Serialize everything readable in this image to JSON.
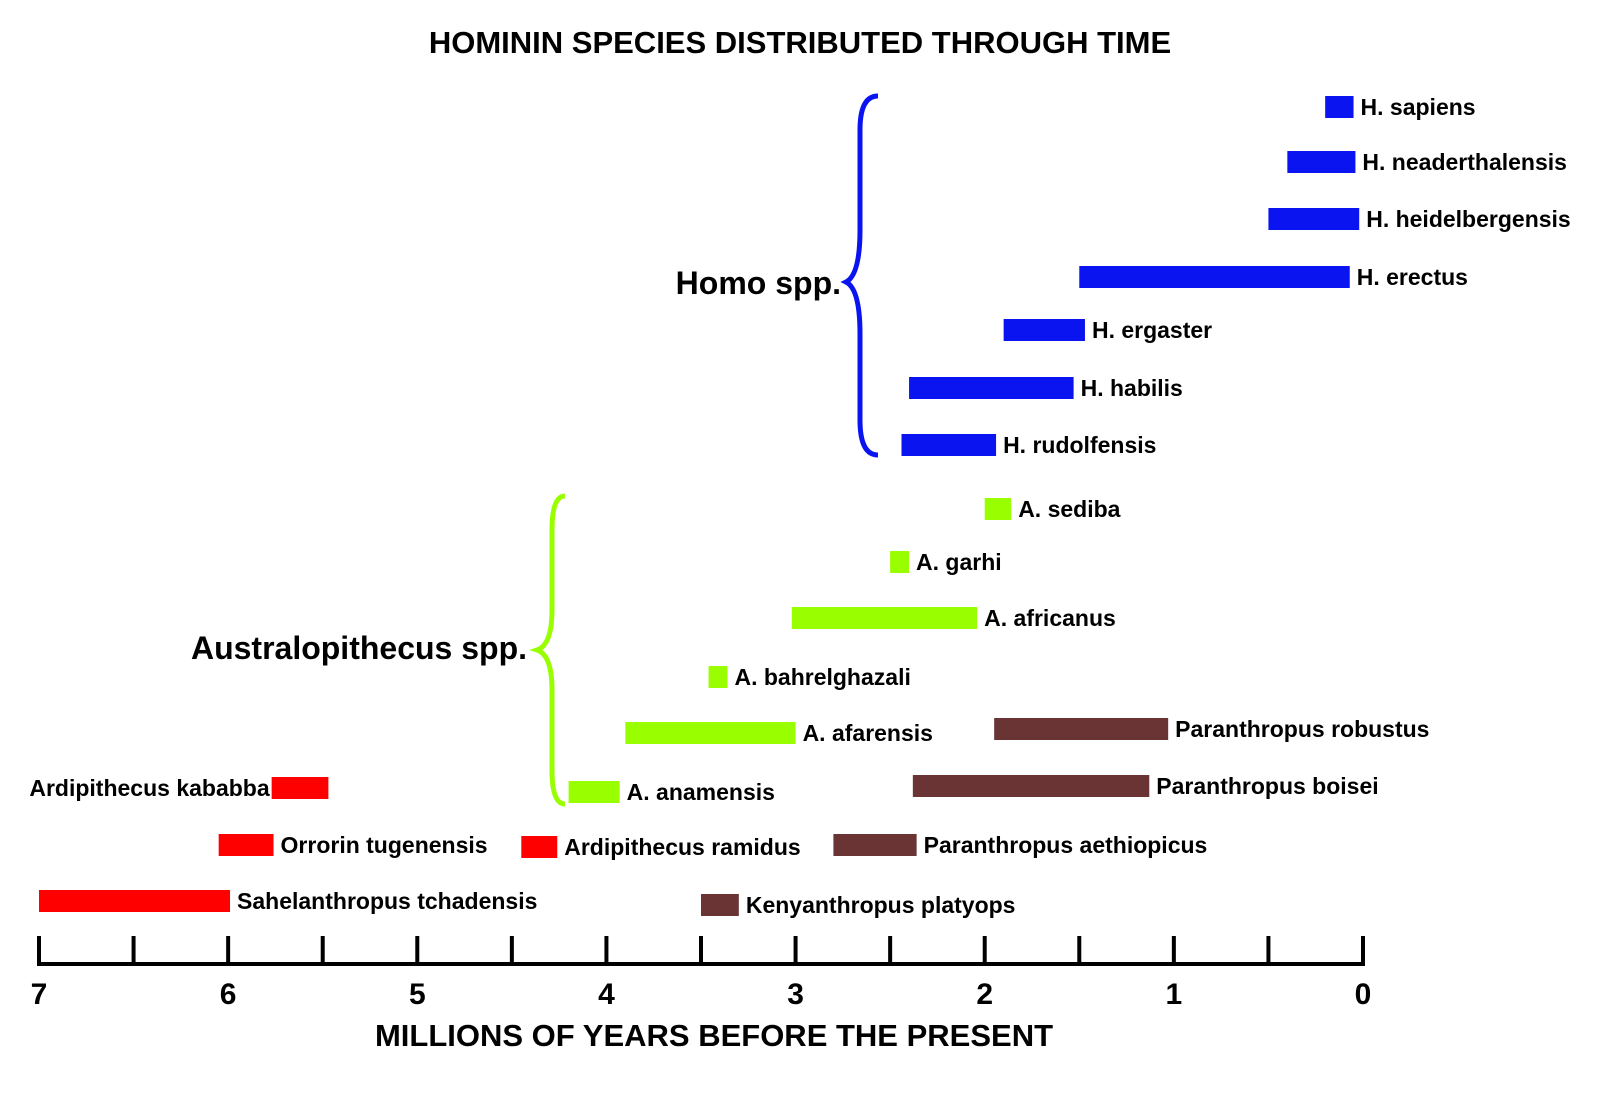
{
  "chart_data": {
    "type": "bar",
    "orientation": "horizontal-range",
    "title": "HOMININ SPECIES DISTRIBUTED THROUGH TIME",
    "xlabel": "MILLIONS OF YEARS BEFORE THE PRESENT",
    "ylabel": "",
    "xlim": [
      7,
      0
    ],
    "x_ticks": [
      7,
      6,
      5,
      4,
      3,
      2,
      1,
      0
    ],
    "minor_ticks": [
      6.5,
      5.5,
      4.5,
      3.5,
      2.5,
      1.5,
      0.5
    ],
    "grid": false,
    "colors": {
      "homo": "#0a14f0",
      "australopithecus": "#99ff00",
      "early": "#ff0000",
      "paranthropus": "#6b3434"
    },
    "groups": [
      {
        "label": "Homo spp.",
        "color": "homo"
      },
      {
        "label": "Australopithecus spp.",
        "color": "australopithecus"
      }
    ],
    "species": [
      {
        "name": "H. sapiens",
        "start": 0.2,
        "end": 0.05,
        "group": "homo"
      },
      {
        "name": "H. neaderthalensis",
        "start": 0.4,
        "end": 0.04,
        "group": "homo"
      },
      {
        "name": "H. heidelbergensis",
        "start": 0.5,
        "end": 0.02,
        "group": "homo"
      },
      {
        "name": "H. erectus",
        "start": 1.5,
        "end": 0.07,
        "group": "homo"
      },
      {
        "name": "H. ergaster",
        "start": 1.9,
        "end": 1.47,
        "group": "homo"
      },
      {
        "name": "H. habilis",
        "start": 2.4,
        "end": 1.53,
        "group": "homo"
      },
      {
        "name": "H. rudolfensis",
        "start": 2.44,
        "end": 1.94,
        "group": "homo"
      },
      {
        "name": "A. sediba",
        "start": 2.0,
        "end": 1.86,
        "group": "australopithecus"
      },
      {
        "name": "A. garhi",
        "start": 2.5,
        "end": 2.4,
        "group": "australopithecus"
      },
      {
        "name": "A. africanus",
        "start": 3.02,
        "end": 2.04,
        "group": "australopithecus"
      },
      {
        "name": "A. bahrelghazali",
        "start": 3.46,
        "end": 3.36,
        "group": "australopithecus"
      },
      {
        "name": "A. afarensis",
        "start": 3.9,
        "end": 3.0,
        "group": "australopithecus"
      },
      {
        "name": "A. anamensis",
        "start": 4.2,
        "end": 3.93,
        "group": "australopithecus"
      },
      {
        "name": "Paranthropus robustus",
        "start": 1.95,
        "end": 1.03,
        "group": "paranthropus"
      },
      {
        "name": "Paranthropus boisei",
        "start": 2.38,
        "end": 1.13,
        "group": "paranthropus"
      },
      {
        "name": "Paranthropus aethiopicus",
        "start": 2.8,
        "end": 2.36,
        "group": "paranthropus"
      },
      {
        "name": "Kenyanthropus platyops",
        "start": 3.5,
        "end": 3.3,
        "group": "paranthropus"
      },
      {
        "name": "Ardipithecus kababba",
        "start": 5.77,
        "end": 5.47,
        "group": "early"
      },
      {
        "name": "Orrorin tugenensis",
        "start": 6.05,
        "end": 5.76,
        "group": "early"
      },
      {
        "name": "Ardipithecus ramidus",
        "start": 4.45,
        "end": 4.26,
        "group": "early"
      },
      {
        "name": "Sahelanthropus tchadensis",
        "start": 7.0,
        "end": 5.99,
        "group": "early"
      }
    ]
  }
}
